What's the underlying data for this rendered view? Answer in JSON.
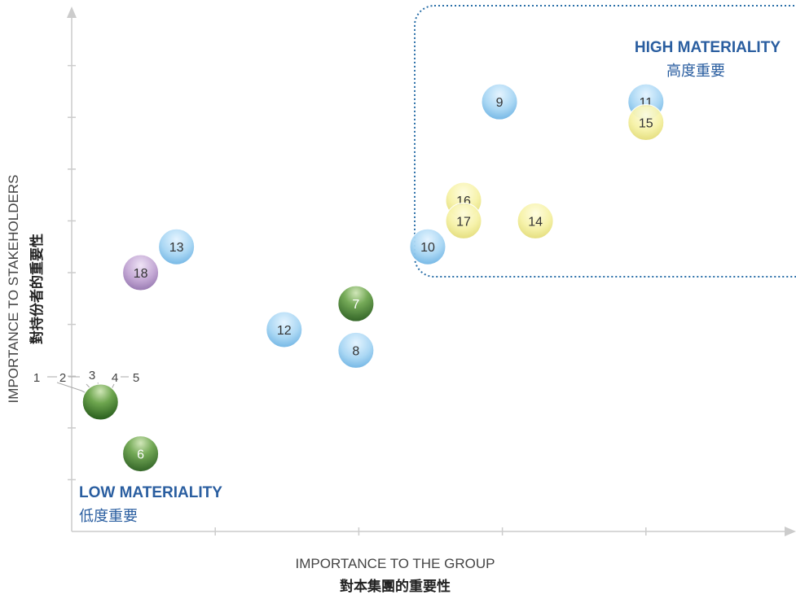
{
  "chart_data": {
    "type": "scatter",
    "xlabel": "IMPORTANCE TO THE GROUP",
    "xlabel_sub": "對本集團的重要性",
    "ylabel": "IMPORTANCE TO STAKEHOLDERS",
    "ylabel_sub": "對持份者的重要性",
    "xlim": [
      0,
      5
    ],
    "ylim": [
      0,
      10
    ],
    "grid": false,
    "zones": [
      {
        "title": "HIGH MATERIALITY",
        "subtitle": "高度重要",
        "color": "#2a5ea0"
      },
      {
        "title": "LOW MATERIALITY",
        "subtitle": "低度重要",
        "color": "#2a5ea0"
      }
    ],
    "colors": {
      "blue": "#9dcff0",
      "yellow": "#f3ef9e",
      "green": "#4e8a3a",
      "purple": "#b89ac8",
      "zone_border": "#2a6fa8",
      "axis": "#cccccc"
    },
    "points": [
      {
        "label": "1",
        "x": 0.2,
        "y": 2.5,
        "color": "green"
      },
      {
        "label": "2",
        "x": 0.2,
        "y": 2.5,
        "color": "green"
      },
      {
        "label": "3",
        "x": 0.2,
        "y": 2.5,
        "color": "green"
      },
      {
        "label": "4",
        "x": 0.2,
        "y": 2.5,
        "color": "green"
      },
      {
        "label": "5",
        "x": 0.2,
        "y": 2.5,
        "color": "green"
      },
      {
        "label": "6",
        "x": 0.48,
        "y": 1.5,
        "color": "green"
      },
      {
        "label": "7",
        "x": 1.98,
        "y": 4.4,
        "color": "green"
      },
      {
        "label": "8",
        "x": 1.98,
        "y": 3.5,
        "color": "blue"
      },
      {
        "label": "9",
        "x": 2.98,
        "y": 8.3,
        "color": "blue"
      },
      {
        "label": "10",
        "x": 2.48,
        "y": 5.5,
        "color": "blue"
      },
      {
        "label": "11",
        "x": 4.0,
        "y": 8.3,
        "color": "blue"
      },
      {
        "label": "12",
        "x": 1.48,
        "y": 3.9,
        "color": "blue"
      },
      {
        "label": "13",
        "x": 0.73,
        "y": 5.5,
        "color": "blue"
      },
      {
        "label": "14",
        "x": 3.23,
        "y": 6.0,
        "color": "yellow"
      },
      {
        "label": "15",
        "x": 4.0,
        "y": 7.9,
        "color": "yellow"
      },
      {
        "label": "16",
        "x": 2.73,
        "y": 6.4,
        "color": "yellow"
      },
      {
        "label": "17",
        "x": 2.73,
        "y": 6.0,
        "color": "yellow"
      },
      {
        "label": "18",
        "x": 0.48,
        "y": 5.0,
        "color": "purple"
      }
    ],
    "cluster_labels": [
      "1",
      "2",
      "3",
      "4",
      "5"
    ]
  }
}
